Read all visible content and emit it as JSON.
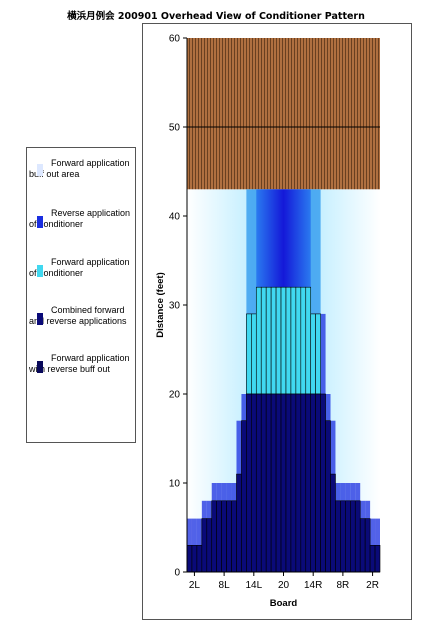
{
  "title": "横浜月例会 200901 Overhead View of Conditioner Pattern",
  "legend": {
    "items": [
      {
        "label": "Forward application buff out area",
        "color": "#dde8ff"
      },
      {
        "label": "Reverse application of conditioner",
        "color": "#1a2ee0"
      },
      {
        "label": "Forward application of conditioner",
        "color": "#40d8f0"
      },
      {
        "label": "Combined forward and reverse applications",
        "color": "#0a0a78"
      },
      {
        "label": "Forward application with reverse buff out",
        "color": "#08085a"
      }
    ]
  },
  "colors": {
    "pin_deck": "#b07040",
    "pin_deck_stripe": "#6a4020",
    "combined": "#0a0a78",
    "reverse": "#1a2ee0",
    "forward": "#40d8f0",
    "buff": "#e8f6ff"
  },
  "chart_data": {
    "type": "bar",
    "title": "横浜月例会 200901 Overhead View of Conditioner Pattern",
    "xlabel": "Board",
    "ylabel": "Distance (feet)",
    "ylim": [
      0,
      60
    ],
    "yticks": [
      0,
      10,
      20,
      30,
      40,
      50,
      60
    ],
    "xtick_labels": [
      "2L",
      "8L",
      "14L",
      "20",
      "14R",
      "8R",
      "2R"
    ],
    "boards": [
      1,
      2,
      3,
      4,
      5,
      6,
      7,
      8,
      9,
      10,
      11,
      12,
      13,
      14,
      15,
      16,
      17,
      18,
      19,
      20,
      21,
      22,
      23,
      24,
      25,
      26,
      27,
      28,
      29,
      30,
      31,
      32,
      33,
      34,
      35,
      36,
      37,
      38,
      39
    ],
    "series": [
      {
        "name": "Combined forward and reverse applications",
        "values": [
          3,
          3,
          3,
          6,
          6,
          8,
          8,
          8,
          8,
          8,
          11,
          17,
          20,
          20,
          20,
          20,
          20,
          20,
          20,
          20,
          20,
          20,
          20,
          20,
          20,
          20,
          20,
          20,
          17,
          11,
          8,
          8,
          8,
          8,
          8,
          6,
          6,
          3,
          3
        ]
      },
      {
        "name": "Forward application of conditioner",
        "values": [
          0,
          0,
          0,
          0,
          0,
          0,
          0,
          8,
          0,
          0,
          0,
          0,
          0,
          0,
          0,
          0,
          0,
          0,
          0,
          0,
          0,
          0,
          0,
          0,
          0,
          0,
          0,
          0,
          0,
          0,
          0,
          8,
          0,
          0,
          0,
          0,
          0,
          0,
          0
        ]
      },
      {
        "name": "Reverse application of conditioner",
        "values": [
          6,
          6,
          6,
          8,
          8,
          10,
          10,
          10,
          10,
          10,
          17,
          20,
          29,
          29,
          29,
          29,
          29,
          29,
          29,
          29,
          29,
          29,
          29,
          29,
          29,
          29,
          29,
          29,
          20,
          17,
          10,
          10,
          10,
          10,
          10,
          8,
          8,
          6,
          6
        ]
      }
    ],
    "pin_deck": {
      "from": 43,
      "to": 60
    },
    "grid": false,
    "legend_position": "left"
  }
}
